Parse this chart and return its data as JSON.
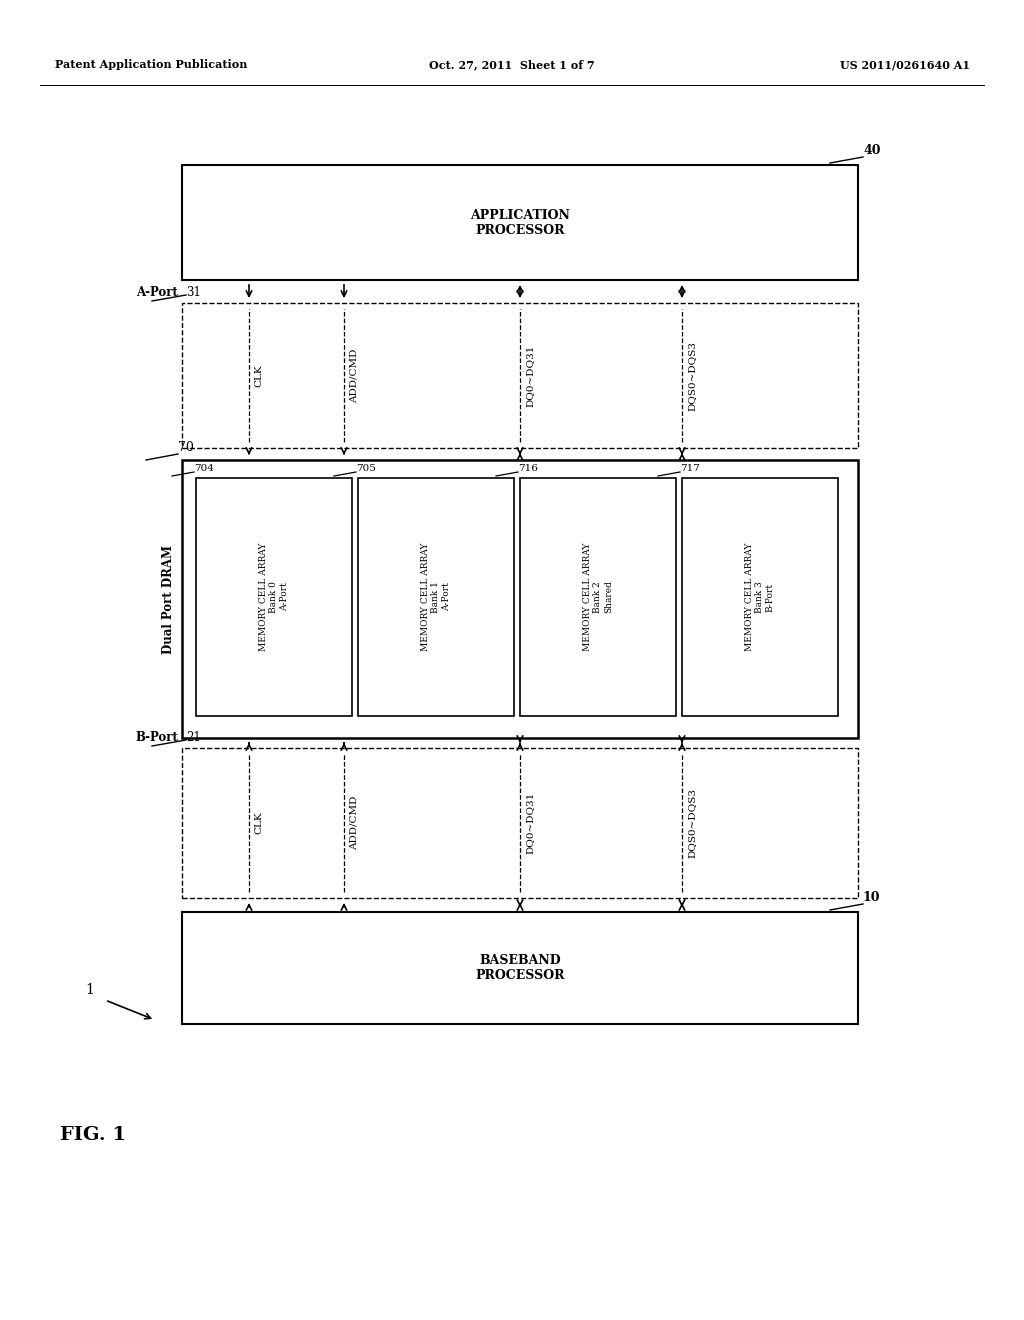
{
  "bg_color": "#ffffff",
  "header_left": "Patent Application Publication",
  "header_mid": "Oct. 27, 2011  Sheet 1 of 7",
  "header_right": "US 2011/0261640 A1",
  "fig_label": "FIG. 1",
  "system_label": "1",
  "app_proc_label": "40",
  "app_proc_text": "APPLICATION\nPROCESSOR",
  "aport_label": "31",
  "aport_name": "A-Port",
  "aport_signals": [
    "CLK",
    "ADD/CMD",
    "DQ0~DQ31",
    "DQS0~DQS3"
  ],
  "dram_label": "70",
  "dram_name": "Dual Port DRAM",
  "banks": [
    {
      "label": "704",
      "text": "MEMORY CELL ARRAY\nBank 0\nA-Port"
    },
    {
      "label": "705",
      "text": "MEMORY CELL ARRAY\nBank 1\nA-Port"
    },
    {
      "label": "716",
      "text": "MEMORY CELL ARRAY\nBank 2\nShared"
    },
    {
      "label": "717",
      "text": "MEMORY CELL ARRAY\nBank 3\nB-Port"
    }
  ],
  "bport_label": "21",
  "bport_name": "B-Port",
  "bport_signals": [
    "CLK",
    "ADD/CMD",
    "DQ0~DQ31",
    "DQS0~DQS3"
  ],
  "base_proc_label": "10",
  "base_proc_text": "BASEBAND\nPROCESSOR"
}
